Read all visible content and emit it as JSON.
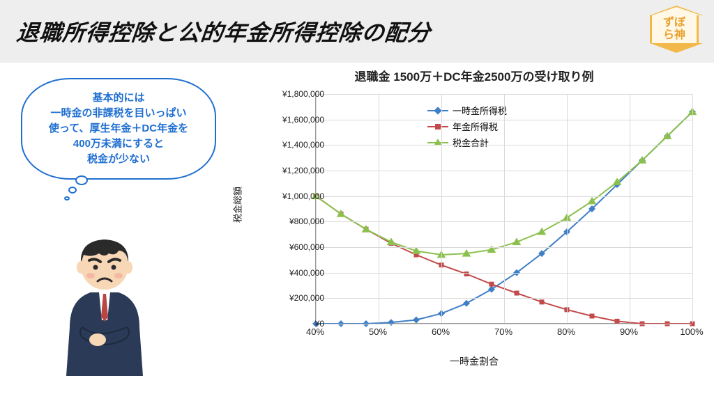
{
  "header": {
    "title": "退職所得控除と公的年金所得控除の配分",
    "badge_line1": "ずぼ",
    "badge_line2": "ら神",
    "title_color": "#111111",
    "bg": "#eeeeee"
  },
  "bubble": {
    "text": "基本的には\n一時金の非課税を目いっぱい\n使って、厚生年金＋DC年金を\n400万未満にすると\n税金が少ない",
    "border_color": "#1f6fd1",
    "text_color": "#1f6fd1"
  },
  "chart": {
    "type": "line",
    "caption": "退職金 1500万＋DC年金2500万の受け取り例",
    "x_label": "一時金割合",
    "y_label": "税金総額",
    "x_ticks": [
      "40%",
      "50%",
      "60%",
      "70%",
      "80%",
      "90%",
      "100%"
    ],
    "x_values_numeric": [
      40,
      50,
      60,
      70,
      80,
      90,
      100
    ],
    "x_min": 40,
    "x_max": 100,
    "y_min": 0,
    "y_max": 1800000,
    "y_tick_step": 200000,
    "y_ticks": [
      0,
      200000,
      400000,
      600000,
      800000,
      1000000,
      1200000,
      1400000,
      1600000,
      1800000
    ],
    "y_tick_labels": [
      "¥0",
      "¥200,000",
      "¥400,000",
      "¥600,000",
      "¥800,000",
      "¥1,000,000",
      "¥1,200,000",
      "¥1,400,000",
      "¥1,600,000",
      "¥1,800,000"
    ],
    "grid_color": "#d9d9d9",
    "axis_color": "#999999",
    "label_fontsize": 13,
    "tick_fontsize": 12,
    "caption_fontsize": 17,
    "background_color": "#ffffff",
    "line_width": 2,
    "marker_size": 7,
    "series": [
      {
        "name": "一時金所得税",
        "legend": "一時金所得税",
        "color": "#3f7fc6",
        "marker": "diamond",
        "x": [
          40,
          44,
          48,
          52,
          56,
          60,
          64,
          68,
          72,
          76,
          80,
          84,
          88,
          92,
          96,
          100
        ],
        "y": [
          0,
          0,
          0,
          10000,
          30000,
          80000,
          160000,
          270000,
          400000,
          550000,
          720000,
          900000,
          1090000,
          1280000,
          1470000,
          1660000
        ]
      },
      {
        "name": "年金所得税",
        "legend": "年金所得税",
        "color": "#c24a4a",
        "marker": "square",
        "x": [
          40,
          44,
          48,
          52,
          56,
          60,
          64,
          68,
          72,
          76,
          80,
          84,
          88,
          92,
          96,
          100
        ],
        "y": [
          1000000,
          860000,
          740000,
          630000,
          540000,
          460000,
          390000,
          310000,
          240000,
          170000,
          110000,
          60000,
          20000,
          0,
          0,
          0
        ]
      },
      {
        "name": "税金合計",
        "legend": "税金合計",
        "color": "#8cc04e",
        "marker": "triangle",
        "x": [
          40,
          44,
          48,
          52,
          56,
          60,
          64,
          68,
          72,
          76,
          80,
          84,
          88,
          92,
          96,
          100
        ],
        "y": [
          1000000,
          860000,
          740000,
          640000,
          570000,
          540000,
          550000,
          580000,
          640000,
          720000,
          830000,
          960000,
          1110000,
          1280000,
          1470000,
          1660000
        ]
      }
    ],
    "legend_position": "inside-top-left"
  },
  "character": {
    "suit_color": "#2b3b57",
    "hair_color": "#2a2a2a",
    "skin_color": "#f7d7b5",
    "tie_color": "#b94545"
  }
}
